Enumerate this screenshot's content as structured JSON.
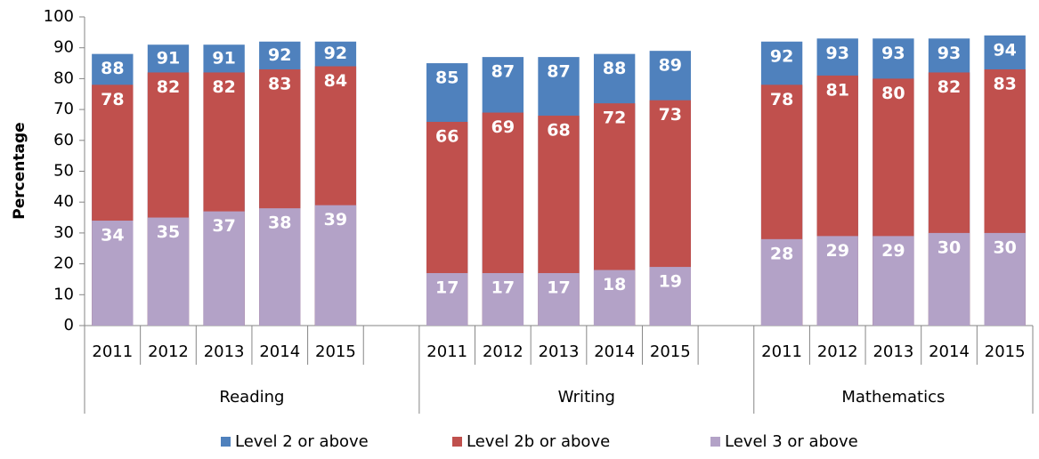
{
  "chart_data": {
    "type": "bar",
    "overlap": true,
    "y_label": "Percentage",
    "groups": [
      "Reading",
      "Writing",
      "Mathematics"
    ],
    "categories": [
      "2011",
      "2012",
      "2013",
      "2014",
      "2015",
      null,
      "2011",
      "2012",
      "2013",
      "2014",
      "2015",
      null,
      "2011",
      "2012",
      "2013",
      "2014",
      "2015"
    ],
    "series": [
      {
        "name": "Level 2 or above",
        "color": "#4f81bd",
        "values": [
          88,
          91,
          91,
          92,
          92,
          null,
          85,
          87,
          87,
          88,
          89,
          null,
          92,
          93,
          93,
          93,
          94
        ]
      },
      {
        "name": "Level 2b or above",
        "color": "#c0504d",
        "values": [
          78,
          82,
          82,
          83,
          84,
          null,
          66,
          69,
          68,
          72,
          73,
          null,
          78,
          81,
          80,
          82,
          83
        ]
      },
      {
        "name": "Level 3 or above",
        "color": "#b3a2c7",
        "values": [
          34,
          35,
          37,
          38,
          39,
          null,
          17,
          17,
          17,
          18,
          19,
          null,
          28,
          29,
          29,
          30,
          30
        ]
      }
    ],
    "ylim": [
      0,
      100
    ],
    "yticks": [
      0,
      10,
      20,
      30,
      40,
      50,
      60,
      70,
      80,
      90,
      100
    ],
    "grid": false,
    "legend": "bottom"
  }
}
